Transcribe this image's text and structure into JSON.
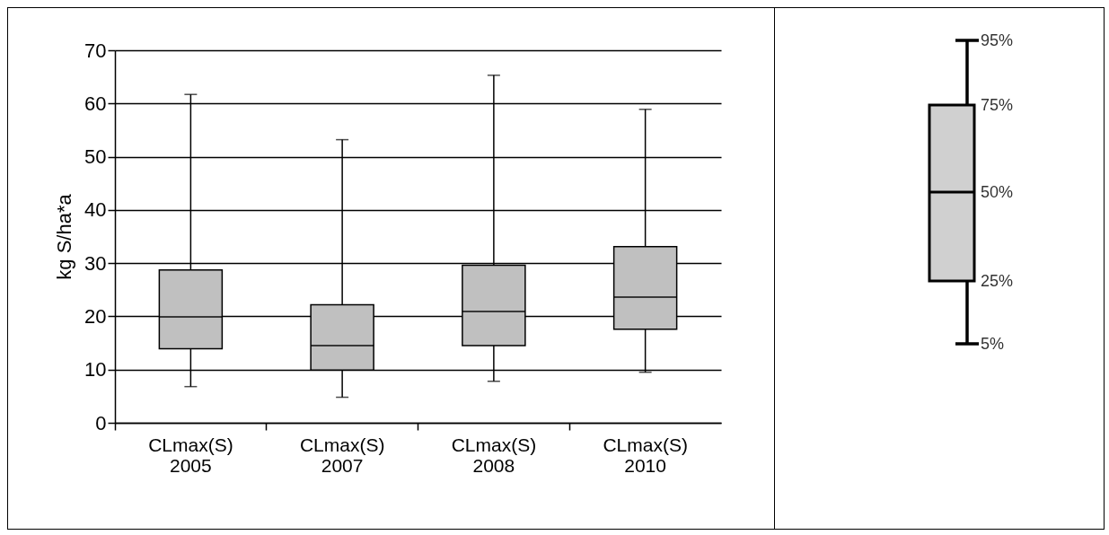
{
  "chart_data": {
    "type": "box",
    "categories": [
      "CLmax(S) 2005",
      "CLmax(S) 2007",
      "CLmax(S) 2008",
      "CLmax(S) 2010"
    ],
    "boxes": [
      {
        "low": 6.8,
        "q1": 13.9,
        "median": 19.9,
        "q3": 28.7,
        "high": 61.7
      },
      {
        "low": 4.8,
        "q1": 9.9,
        "median": 14.5,
        "q3": 22.2,
        "high": 53.2
      },
      {
        "low": 7.8,
        "q1": 14.5,
        "median": 20.9,
        "q3": 29.6,
        "high": 65.3
      },
      {
        "low": 9.5,
        "q1": 17.6,
        "median": 23.6,
        "q3": 33.1,
        "high": 58.9
      }
    ],
    "color": "#c0c0c0",
    "ylabel": "kg S/ha*a",
    "ylim": [
      0,
      70
    ],
    "yticks": [
      0,
      10,
      20,
      30,
      40,
      50,
      60,
      70
    ],
    "grid": "y",
    "annotations": [
      "95%",
      "75%",
      "50%",
      "25%",
      "5%"
    ]
  }
}
